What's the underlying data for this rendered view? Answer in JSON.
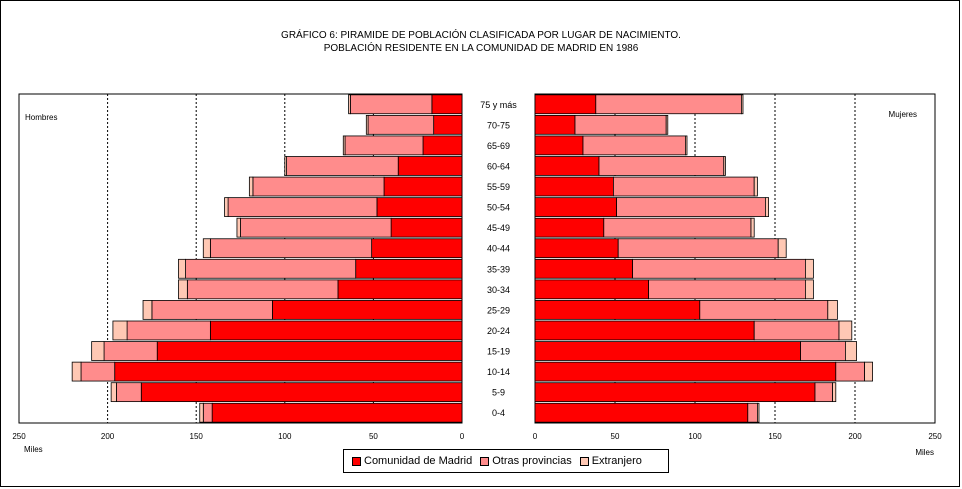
{
  "title_line1": "GRÁFICO 6: PIRAMIDE DE POBLACIÓN CLASIFICADA POR LUGAR DE NACIMIENTO.",
  "title_line2": "POBLACIÓN RESIDENTE EN LA COMUNIDAD DE MADRID EN 1986",
  "colors": {
    "madrid": "#ff0000",
    "provincias": "#ff8c8c",
    "extranjero": "#ffc8b4"
  },
  "chart_data": {
    "type": "bar",
    "subtype": "population-pyramid",
    "categories": [
      "75 y más",
      "70-75",
      "65-69",
      "60-64",
      "55-59",
      "50-54",
      "45-49",
      "40-44",
      "35-39",
      "30-34",
      "25-29",
      "20-24",
      "15-19",
      "10-14",
      "5-9",
      "0-4"
    ],
    "left_panel_label": "Hombres",
    "right_panel_label": "Mujeres",
    "left_unit_label": "Miles",
    "right_unit_label": "Miles",
    "x_ticks_left": [
      "250",
      "200",
      "150",
      "100",
      "50",
      "0"
    ],
    "x_ticks_right": [
      "0",
      "50",
      "100",
      "150",
      "200",
      "250"
    ],
    "xlim": [
      0,
      250
    ],
    "legend": [
      "Comunidad de Madrid",
      "Otras provincias",
      "Extranjero"
    ],
    "hombres": {
      "madrid": [
        17,
        16,
        22,
        36,
        44,
        48,
        40,
        51,
        60,
        70,
        107,
        142,
        172,
        196,
        181,
        141
      ],
      "provincias": [
        46,
        37,
        44,
        63,
        74,
        84,
        85,
        91,
        96,
        85,
        68,
        47,
        30,
        19,
        14,
        5
      ],
      "extranjero": [
        1,
        1,
        1,
        1,
        2,
        2,
        2,
        4,
        4,
        5,
        5,
        8,
        7,
        5,
        3,
        2
      ]
    },
    "mujeres": {
      "madrid": [
        38,
        25,
        30,
        40,
        49,
        51,
        43,
        52,
        61,
        71,
        103,
        137,
        166,
        188,
        175,
        133
      ],
      "provincias": [
        91,
        57,
        64,
        78,
        88,
        93,
        92,
        100,
        108,
        98,
        80,
        53,
        28,
        18,
        11,
        6
      ],
      "extranjero": [
        1,
        1,
        1,
        1,
        2,
        2,
        2,
        5,
        5,
        5,
        6,
        8,
        7,
        5,
        2,
        1
      ]
    }
  }
}
